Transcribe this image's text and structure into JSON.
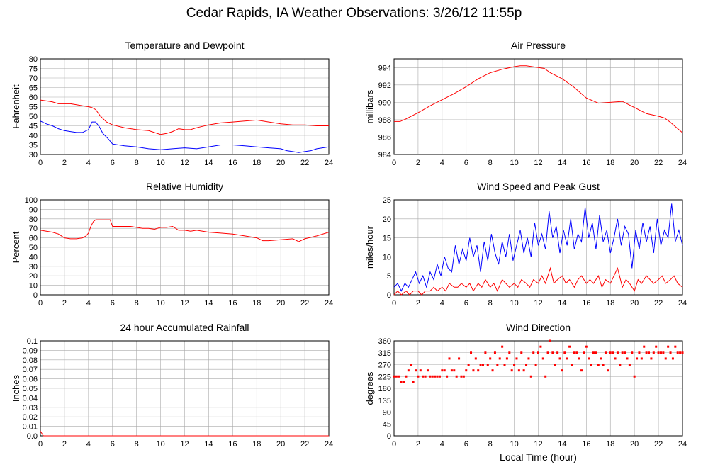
{
  "page": {
    "title": "Cedar Rapids, IA Weather Observations: 3/26/12 11:55p"
  },
  "chart_data": [
    {
      "type": "line",
      "title": "Temperature and Dewpoint",
      "ylabel": "Fahrenheit",
      "xlabel": "",
      "xlim": [
        0,
        24
      ],
      "ylim": [
        30,
        80
      ],
      "xticks": [
        0,
        2,
        4,
        6,
        8,
        10,
        12,
        14,
        16,
        18,
        20,
        22,
        24
      ],
      "yticks": [
        30,
        35,
        40,
        45,
        50,
        55,
        60,
        65,
        70,
        75,
        80
      ],
      "grid": true,
      "series": [
        {
          "color": "#ff0000",
          "x": [
            0,
            0.5,
            1,
            1.5,
            2,
            2.5,
            3,
            3.5,
            4,
            4.3,
            4.6,
            5,
            5.5,
            6,
            7,
            8,
            9,
            10,
            10.5,
            11,
            11.5,
            12,
            12.5,
            13,
            14,
            15,
            16,
            17,
            18,
            19,
            20,
            21,
            22,
            23,
            24
          ],
          "values": [
            58.5,
            58,
            57.5,
            56.5,
            56.5,
            56.5,
            56,
            55.5,
            55,
            54.5,
            53.5,
            50,
            47,
            45.5,
            44,
            43,
            42.5,
            40.5,
            41,
            42,
            43.5,
            43,
            43,
            44,
            45.5,
            46.5,
            47,
            47.5,
            48,
            47,
            46,
            45.5,
            45.5,
            45,
            45
          ]
        },
        {
          "color": "#0000ff",
          "x": [
            0,
            0.5,
            1,
            1.5,
            2,
            2.5,
            3,
            3.5,
            4,
            4.3,
            4.6,
            4.9,
            5.2,
            5.6,
            6,
            7,
            8,
            9,
            10,
            11,
            12,
            13,
            14,
            15,
            16,
            17,
            18,
            19,
            20,
            20.5,
            21,
            21.5,
            22,
            22.5,
            23,
            24
          ],
          "values": [
            47.5,
            46,
            45,
            43.5,
            42.5,
            42,
            41.5,
            41.5,
            43,
            47,
            47,
            44.5,
            41,
            38.5,
            35.5,
            34.5,
            34,
            33,
            32.5,
            33,
            33.5,
            33,
            34,
            35,
            35,
            34.5,
            34,
            33.5,
            33,
            32,
            31.5,
            31,
            31.5,
            32,
            33,
            34
          ]
        }
      ]
    },
    {
      "type": "line",
      "title": "Air Pressure",
      "ylabel": "millibars",
      "xlabel": "",
      "xlim": [
        0,
        24
      ],
      "ylim": [
        984,
        995
      ],
      "xticks": [
        0,
        2,
        4,
        6,
        8,
        10,
        12,
        14,
        16,
        18,
        20,
        22,
        24
      ],
      "yticks": [
        984,
        986,
        988,
        990,
        992,
        994
      ],
      "grid": true,
      "series": [
        {
          "color": "#ff0000",
          "x": [
            0,
            0.5,
            1,
            2,
            3,
            4,
            5,
            6,
            7,
            8,
            9,
            10,
            10.5,
            11,
            11.5,
            12,
            12.5,
            13,
            14,
            15,
            16,
            17,
            18,
            19,
            20,
            21,
            22,
            22.5,
            23,
            23.5,
            24
          ],
          "values": [
            987.8,
            987.8,
            988.1,
            988.8,
            989.6,
            990.3,
            991,
            991.8,
            992.7,
            993.4,
            993.8,
            994.1,
            994.2,
            994.2,
            994.1,
            994,
            993.9,
            993.4,
            992.7,
            991.7,
            990.5,
            989.9,
            990,
            990.1,
            989.4,
            988.7,
            988.4,
            988.2,
            987.7,
            987.1,
            986.5
          ]
        }
      ]
    },
    {
      "type": "line",
      "title": "Relative Humidity",
      "ylabel": "Percent",
      "xlabel": "",
      "xlim": [
        0,
        24
      ],
      "ylim": [
        0,
        100
      ],
      "xticks": [
        0,
        2,
        4,
        6,
        8,
        10,
        12,
        14,
        16,
        18,
        20,
        22,
        24
      ],
      "yticks": [
        0,
        10,
        20,
        30,
        40,
        50,
        60,
        70,
        80,
        90,
        100
      ],
      "grid": true,
      "series": [
        {
          "color": "#ff0000",
          "x": [
            0,
            0.5,
            1,
            1.5,
            2,
            2.5,
            3,
            3.5,
            3.8,
            4,
            4.2,
            4.4,
            4.6,
            5,
            5.5,
            5.8,
            6,
            6.5,
            7,
            7.5,
            8,
            8.5,
            9,
            9.5,
            10,
            10.5,
            11,
            11.5,
            12,
            12.5,
            13,
            14,
            15,
            16,
            17,
            18,
            18.5,
            19,
            20,
            21,
            21.5,
            22,
            23,
            24
          ],
          "values": [
            68,
            67,
            66,
            64,
            60,
            59,
            59,
            60,
            62,
            65,
            72,
            77,
            79,
            79,
            79,
            79,
            72,
            72,
            72,
            72,
            71,
            70,
            70,
            69,
            71,
            71,
            72,
            68,
            68,
            67,
            68,
            66,
            65,
            64,
            62,
            60,
            57,
            57,
            58,
            59,
            56,
            59,
            62,
            66
          ]
        }
      ]
    },
    {
      "type": "line",
      "title": "Wind Speed and Peak Gust",
      "ylabel": "miles/hour",
      "xlabel": "",
      "xlim": [
        0,
        24
      ],
      "ylim": [
        0,
        25
      ],
      "xticks": [
        0,
        2,
        4,
        6,
        8,
        10,
        12,
        14,
        16,
        18,
        20,
        22,
        24
      ],
      "yticks": [
        0,
        5,
        10,
        15,
        20,
        25
      ],
      "grid": true,
      "series": [
        {
          "color": "#ff0000",
          "x": [
            0,
            0.3,
            0.6,
            1,
            1.3,
            1.6,
            2,
            2.3,
            2.6,
            3,
            3.3,
            3.6,
            4,
            4.3,
            4.6,
            5,
            5.3,
            5.6,
            6,
            6.3,
            6.6,
            7,
            7.3,
            7.6,
            8,
            8.3,
            8.6,
            9,
            9.3,
            9.6,
            10,
            10.3,
            10.6,
            11,
            11.3,
            11.6,
            12,
            12.3,
            12.6,
            13,
            13.3,
            13.6,
            14,
            14.3,
            14.6,
            15,
            15.3,
            15.6,
            16,
            16.3,
            16.6,
            17,
            17.3,
            17.6,
            18,
            18.3,
            18.6,
            19,
            19.3,
            19.6,
            20,
            20.3,
            20.6,
            21,
            21.3,
            21.6,
            22,
            22.3,
            22.6,
            23,
            23.3,
            23.6,
            24
          ],
          "values": [
            0,
            1,
            0,
            1,
            0,
            1,
            1,
            0,
            1,
            1,
            2,
            1,
            2,
            1,
            3,
            2,
            2,
            3,
            2,
            3,
            1,
            3,
            2,
            4,
            2,
            3,
            1,
            4,
            3,
            2,
            3,
            2,
            4,
            3,
            2,
            4,
            3,
            5,
            3,
            7,
            3,
            4,
            5,
            3,
            4,
            2,
            4,
            5,
            3,
            4,
            3,
            5,
            2,
            4,
            3,
            5,
            7,
            2,
            4,
            3,
            1,
            4,
            3,
            5,
            4,
            3,
            4,
            5,
            3,
            4,
            5,
            3,
            2
          ]
        },
        {
          "color": "#0000ff",
          "x": [
            0,
            0.3,
            0.6,
            0.9,
            1.2,
            1.5,
            1.8,
            2.1,
            2.4,
            2.7,
            3,
            3.3,
            3.6,
            3.9,
            4.2,
            4.5,
            4.8,
            5.1,
            5.4,
            5.7,
            6,
            6.3,
            6.6,
            6.9,
            7.2,
            7.5,
            7.8,
            8.1,
            8.4,
            8.7,
            9,
            9.3,
            9.6,
            9.9,
            10.2,
            10.5,
            10.8,
            11.1,
            11.4,
            11.7,
            12,
            12.3,
            12.6,
            12.9,
            13.2,
            13.5,
            13.8,
            14.1,
            14.4,
            14.7,
            15,
            15.3,
            15.6,
            15.9,
            16.2,
            16.5,
            16.8,
            17.1,
            17.4,
            17.7,
            18,
            18.3,
            18.6,
            18.9,
            19.2,
            19.5,
            19.8,
            20.1,
            20.4,
            20.7,
            21,
            21.3,
            21.6,
            21.9,
            22.2,
            22.5,
            22.8,
            23.1,
            23.4,
            23.7,
            24
          ],
          "values": [
            2,
            3,
            1,
            3,
            2,
            4,
            6,
            3,
            5,
            2,
            6,
            4,
            8,
            5,
            10,
            7,
            6,
            13,
            8,
            12,
            9,
            15,
            10,
            13,
            6,
            14,
            9,
            16,
            11,
            8,
            14,
            10,
            16,
            9,
            13,
            17,
            11,
            15,
            10,
            19,
            13,
            16,
            12,
            22,
            15,
            18,
            11,
            17,
            13,
            20,
            12,
            16,
            14,
            23,
            15,
            19,
            12,
            21,
            14,
            17,
            11,
            15,
            20,
            13,
            18,
            16,
            7,
            17,
            12,
            19,
            14,
            18,
            11,
            20,
            13,
            17,
            15,
            24,
            14,
            17,
            13
          ]
        }
      ]
    },
    {
      "type": "line",
      "title": "24 hour Accumulated Rainfall",
      "ylabel": "Inches",
      "xlabel": "",
      "xlim": [
        0,
        24
      ],
      "ylim": [
        0,
        0.1
      ],
      "xticks": [
        0,
        2,
        4,
        6,
        8,
        10,
        12,
        14,
        16,
        18,
        20,
        22,
        24
      ],
      "yticks": [
        "0.0",
        "0.01",
        "0.02",
        "0.03",
        "0.04",
        "0.05",
        "0.06",
        "0.07",
        "0.08",
        "0.09",
        "0.1"
      ],
      "grid": true,
      "series": [
        {
          "color": "#ff0000",
          "x": [
            0,
            0.1,
            0.25,
            24
          ],
          "values": [
            0.005,
            0.003,
            0,
            0
          ]
        }
      ]
    },
    {
      "type": "scatter",
      "title": "Wind Direction",
      "ylabel": "degrees",
      "xlabel": "Local Time (hour)",
      "xlim": [
        0,
        24
      ],
      "ylim": [
        0,
        360
      ],
      "xticks": [
        0,
        2,
        4,
        6,
        8,
        10,
        12,
        14,
        16,
        18,
        20,
        22,
        24
      ],
      "yticks": [
        0,
        45,
        90,
        135,
        180,
        225,
        270,
        315,
        360
      ],
      "grid": true,
      "series": [
        {
          "color": "#ff0000",
          "x": [
            0,
            0.2,
            0.4,
            0.6,
            0.8,
            1,
            1.2,
            1.4,
            1.6,
            1.8,
            2,
            2.2,
            2.4,
            2.6,
            2.8,
            3,
            3.2,
            3.4,
            3.6,
            3.8,
            4,
            4.2,
            4.4,
            4.6,
            4.8,
            5,
            5.2,
            5.4,
            5.6,
            5.8,
            6,
            6.2,
            6.4,
            6.6,
            6.8,
            7,
            7.2,
            7.4,
            7.6,
            7.8,
            8,
            8.2,
            8.4,
            8.6,
            8.8,
            9,
            9.2,
            9.4,
            9.6,
            9.8,
            10,
            10.2,
            10.4,
            10.6,
            10.8,
            11,
            11.2,
            11.4,
            11.6,
            11.8,
            12,
            12.2,
            12.4,
            12.6,
            12.8,
            13,
            13.2,
            13.4,
            13.6,
            13.8,
            14,
            14.2,
            14.4,
            14.6,
            14.8,
            15,
            15.2,
            15.4,
            15.6,
            15.8,
            16,
            16.2,
            16.4,
            16.6,
            16.8,
            17,
            17.2,
            17.4,
            17.6,
            17.8,
            18,
            18.2,
            18.4,
            18.6,
            18.8,
            19,
            19.2,
            19.4,
            19.6,
            19.8,
            20,
            20.2,
            20.4,
            20.6,
            20.8,
            21,
            21.2,
            21.4,
            21.6,
            21.8,
            22,
            22.2,
            22.4,
            22.6,
            22.8,
            23,
            23.2,
            23.4,
            23.6,
            23.8,
            24
          ],
          "values": [
            225,
            225,
            225,
            203,
            203,
            225,
            248,
            270,
            203,
            248,
            225,
            248,
            225,
            225,
            248,
            225,
            225,
            225,
            225,
            225,
            248,
            248,
            225,
            293,
            248,
            248,
            225,
            293,
            225,
            225,
            248,
            270,
            315,
            248,
            293,
            248,
            270,
            270,
            315,
            270,
            293,
            248,
            315,
            270,
            293,
            338,
            270,
            293,
            315,
            248,
            270,
            293,
            248,
            315,
            248,
            270,
            293,
            225,
            315,
            270,
            315,
            338,
            293,
            225,
            315,
            360,
            315,
            270,
            315,
            293,
            248,
            315,
            293,
            338,
            270,
            315,
            315,
            293,
            248,
            315,
            338,
            293,
            270,
            315,
            315,
            270,
            293,
            270,
            315,
            248,
            315,
            315,
            293,
            315,
            270,
            315,
            315,
            293,
            270,
            315,
            225,
            293,
            315,
            293,
            338,
            315,
            315,
            293,
            315,
            338,
            315,
            315,
            315,
            293,
            338,
            315,
            293,
            338,
            315,
            315,
            315
          ]
        }
      ]
    }
  ]
}
